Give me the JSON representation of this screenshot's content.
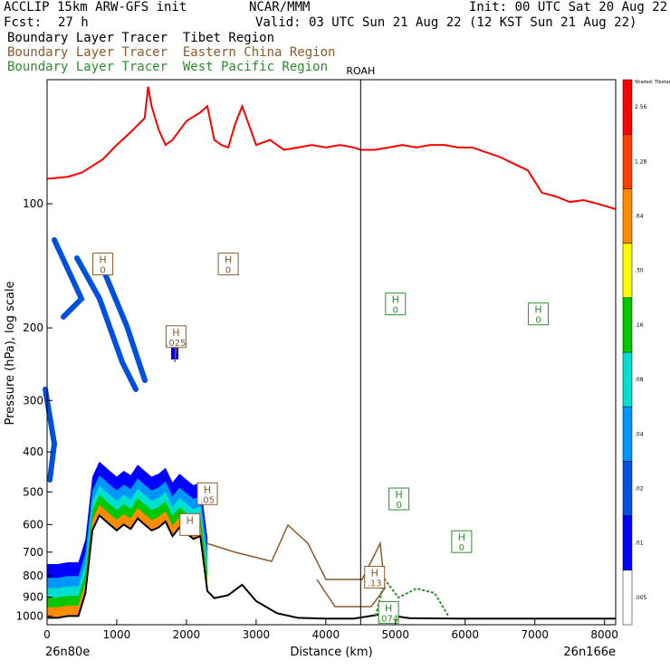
{
  "header": {
    "model": "ACCLIP 15km ARW-GFS init",
    "org": "NCAR/MMM",
    "init": "Init: 00 UTC Sat 20 Aug 22",
    "fcst_label": "Fcst:",
    "fcst_value": "27 h",
    "valid": "Valid: 03 UTC Sun 21 Aug 22 (12 KST Sun 21 Aug 22)"
  },
  "legend": [
    {
      "label": "Boundary Layer Tracer  Tibet Region",
      "color": "#000000"
    },
    {
      "label": "Boundary Layer Tracer  Eastern China Region",
      "color": "#8b5a2b"
    },
    {
      "label": "Boundary Layer Tracer  West Pacific Region",
      "color": "#2e8b2e"
    }
  ],
  "chart_data": {
    "type": "cross-section",
    "xlabel": "Distance (km)",
    "ylabel": "Pressure (hPa), log scale",
    "y_scale": "log",
    "x_ticks": [
      0,
      1000,
      2000,
      3000,
      4000,
      5000,
      6000,
      7000,
      8000
    ],
    "y_ticks": [
      100,
      200,
      300,
      400,
      500,
      600,
      700,
      800,
      900,
      1000
    ],
    "xlim": [
      0,
      8160
    ],
    "ylim": [
      1050,
      50
    ],
    "endpoint_left": "26n80e",
    "endpoint_right": "26n166e",
    "station": {
      "name": "ROAH",
      "x": 4500
    },
    "colorbar": {
      "title": "Shaded: Tibetan tracer",
      "colors": [
        "#ffffff",
        "#0000ff",
        "#0050e0",
        "#0096ff",
        "#00e0d0",
        "#00c800",
        "#ffff00",
        "#ff8c00",
        "#ff4000",
        "#ff0000"
      ],
      "labels": [
        ".005",
        ".01",
        ".02",
        ".04",
        ".08",
        ".16",
        ".30",
        ".64",
        "1.28",
        "2.56"
      ]
    },
    "tropopause": {
      "color": "#ff0000",
      "x": [
        0,
        300,
        500,
        800,
        1000,
        1200,
        1400,
        1450,
        1500,
        1600,
        1700,
        1800,
        2000,
        2200,
        2300,
        2400,
        2500,
        2600,
        2700,
        2800,
        3000,
        3200,
        3400,
        3600,
        3800,
        4000,
        4200,
        4400,
        4500,
        4700,
        4900,
        5100,
        5300,
        5500,
        5700,
        5900,
        6100,
        6300,
        6500,
        6700,
        6900,
        7100,
        7300,
        7500,
        7700,
        7900,
        8160
      ],
      "p": [
        87,
        86,
        84,
        78,
        72,
        67,
        62,
        52,
        58,
        66,
        72,
        70,
        63,
        60,
        58,
        70,
        72,
        73,
        64,
        58,
        72,
        70,
        74,
        73,
        72,
        73,
        72,
        73,
        74,
        74,
        73,
        72,
        73,
        72,
        72,
        73,
        73,
        75,
        77,
        80,
        83,
        94,
        96,
        99,
        98,
        100,
        103
      ]
    },
    "terrain": {
      "color": "#000000",
      "x": [
        0,
        150,
        300,
        450,
        550,
        650,
        750,
        900,
        1000,
        1100,
        1200,
        1300,
        1400,
        1500,
        1600,
        1700,
        1800,
        1900,
        2000,
        2100,
        2200,
        2300,
        2400,
        2600,
        2800,
        3000,
        3300,
        3600,
        4000,
        4400,
        4800,
        5200,
        6000,
        7000,
        8160
      ],
      "p": [
        1010,
        1010,
        1000,
        1000,
        880,
        620,
        570,
        600,
        620,
        600,
        615,
        580,
        600,
        620,
        610,
        590,
        640,
        610,
        630,
        650,
        640,
        870,
        905,
        890,
        840,
        920,
        985,
        1010,
        1015,
        1015,
        990,
        1012,
        1015,
        1015,
        1015
      ]
    },
    "labels_h": [
      {
        "x": 800,
        "p": 140,
        "text": "0",
        "color": "#8b5a2b"
      },
      {
        "x": 2600,
        "p": 140,
        "text": "0",
        "color": "#8b5a2b"
      },
      {
        "x": 1850,
        "p": 210,
        "text": ".025",
        "color": "#8b5a2b"
      },
      {
        "x": 2300,
        "p": 505,
        "text": ".05",
        "color": "#8b5a2b"
      },
      {
        "x": 2050,
        "p": 600,
        "text": "",
        "color": "#8b5a2b"
      },
      {
        "x": 4700,
        "p": 805,
        "text": ".13",
        "color": "#8b5a2b"
      },
      {
        "x": 4900,
        "p": 980,
        "text": ".074",
        "color": "#2e8b2e"
      },
      {
        "x": 5000,
        "p": 175,
        "text": "0",
        "color": "#2e8b2e"
      },
      {
        "x": 7050,
        "p": 185,
        "text": "0",
        "color": "#2e8b2e"
      },
      {
        "x": 5050,
        "p": 520,
        "text": "0",
        "color": "#2e8b2e"
      },
      {
        "x": 5950,
        "p": 660,
        "text": "0",
        "color": "#2e8b2e"
      }
    ]
  }
}
